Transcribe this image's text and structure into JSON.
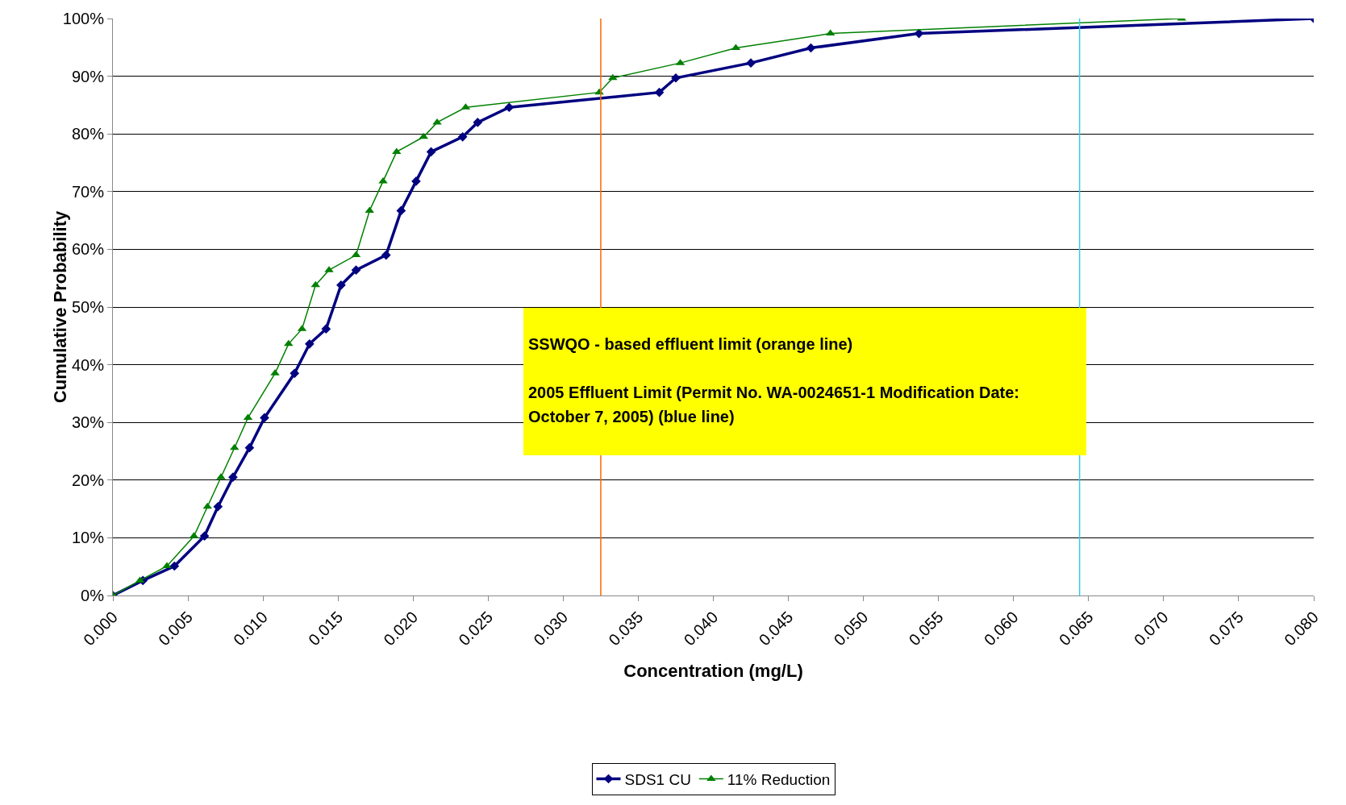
{
  "chart_data": {
    "type": "line",
    "xlabel": "Concentration (mg/L)",
    "ylabel": "Cumulative Probability",
    "xlim": [
      0,
      0.08
    ],
    "xticks": [
      {
        "value": 0,
        "label": "0.000"
      },
      {
        "value": 0.005,
        "label": "0.005"
      },
      {
        "value": 0.01,
        "label": "0.010"
      },
      {
        "value": 0.015,
        "label": "0.015"
      },
      {
        "value": 0.02,
        "label": "0.020"
      },
      {
        "value": 0.025,
        "label": "0.025"
      },
      {
        "value": 0.03,
        "label": "0.030"
      },
      {
        "value": 0.035,
        "label": "0.035"
      },
      {
        "value": 0.04,
        "label": "0.040"
      },
      {
        "value": 0.045,
        "label": "0.045"
      },
      {
        "value": 0.05,
        "label": "0.050"
      },
      {
        "value": 0.055,
        "label": "0.055"
      },
      {
        "value": 0.06,
        "label": "0.060"
      },
      {
        "value": 0.065,
        "label": "0.065"
      },
      {
        "value": 0.07,
        "label": "0.070"
      },
      {
        "value": 0.075,
        "label": "0.075"
      },
      {
        "value": 0.08,
        "label": "0.080"
      }
    ],
    "ylim": [
      0,
      100
    ],
    "yticks": [
      {
        "value": 0,
        "label": "0%"
      },
      {
        "value": 10,
        "label": "10%"
      },
      {
        "value": 20,
        "label": "20%"
      },
      {
        "value": 30,
        "label": "30%"
      },
      {
        "value": 40,
        "label": "40%"
      },
      {
        "value": 50,
        "label": "50%"
      },
      {
        "value": 60,
        "label": "60%"
      },
      {
        "value": 70,
        "label": "70%"
      },
      {
        "value": 80,
        "label": "80%"
      },
      {
        "value": 90,
        "label": "90%"
      },
      {
        "value": 100,
        "label": "100%"
      }
    ],
    "grid": "y",
    "legend": "bottom",
    "series": [
      {
        "name": "SDS1 CU",
        "color": "#000080",
        "marker": "diamond",
        "x": [
          0,
          0.002,
          0.0041,
          0.0061,
          0.007,
          0.008,
          0.0091,
          0.0101,
          0.0121,
          0.0131,
          0.0142,
          0.0152,
          0.0162,
          0.0182,
          0.0192,
          0.0202,
          0.0212,
          0.0233,
          0.0243,
          0.0264,
          0.0364,
          0.0375,
          0.0425,
          0.0465,
          0.0537,
          0.08
        ],
        "values": [
          0,
          2.6,
          5.1,
          10.3,
          15.4,
          20.5,
          25.6,
          30.8,
          38.5,
          43.6,
          46.2,
          53.8,
          56.4,
          59,
          66.7,
          71.8,
          76.9,
          79.5,
          82,
          84.6,
          87.2,
          89.7,
          92.3,
          94.9,
          97.4,
          100
        ]
      },
      {
        "name": "11% Reduction",
        "color": "#008000",
        "marker": "triangle",
        "x": [
          0,
          0.0018,
          0.0036,
          0.0054,
          0.0063,
          0.0072,
          0.0081,
          0.009,
          0.0108,
          0.0117,
          0.0126,
          0.0135,
          0.0144,
          0.0162,
          0.0171,
          0.018,
          0.0189,
          0.0207,
          0.0216,
          0.0235,
          0.0324,
          0.0333,
          0.0378,
          0.0415,
          0.0478,
          0.0712
        ],
        "values": [
          0,
          2.6,
          5.1,
          10.3,
          15.4,
          20.5,
          25.6,
          30.8,
          38.5,
          43.6,
          46.2,
          53.8,
          56.4,
          59,
          66.7,
          71.8,
          76.9,
          79.5,
          82,
          84.6,
          87.2,
          89.7,
          92.3,
          94.9,
          97.4,
          100
        ]
      }
    ],
    "ref_lines": [
      {
        "axis": "x",
        "value": 0.0325,
        "color": "#ff6600"
      },
      {
        "axis": "x",
        "value": 0.0644,
        "color": "#33ccee"
      }
    ],
    "annotations": [
      "SSWQO - based effluent limit (orange line)",
      "2005 Effluent Limit (Permit No. WA-0024651-1 Modification Date: October 7, 2005) (blue line)"
    ]
  }
}
